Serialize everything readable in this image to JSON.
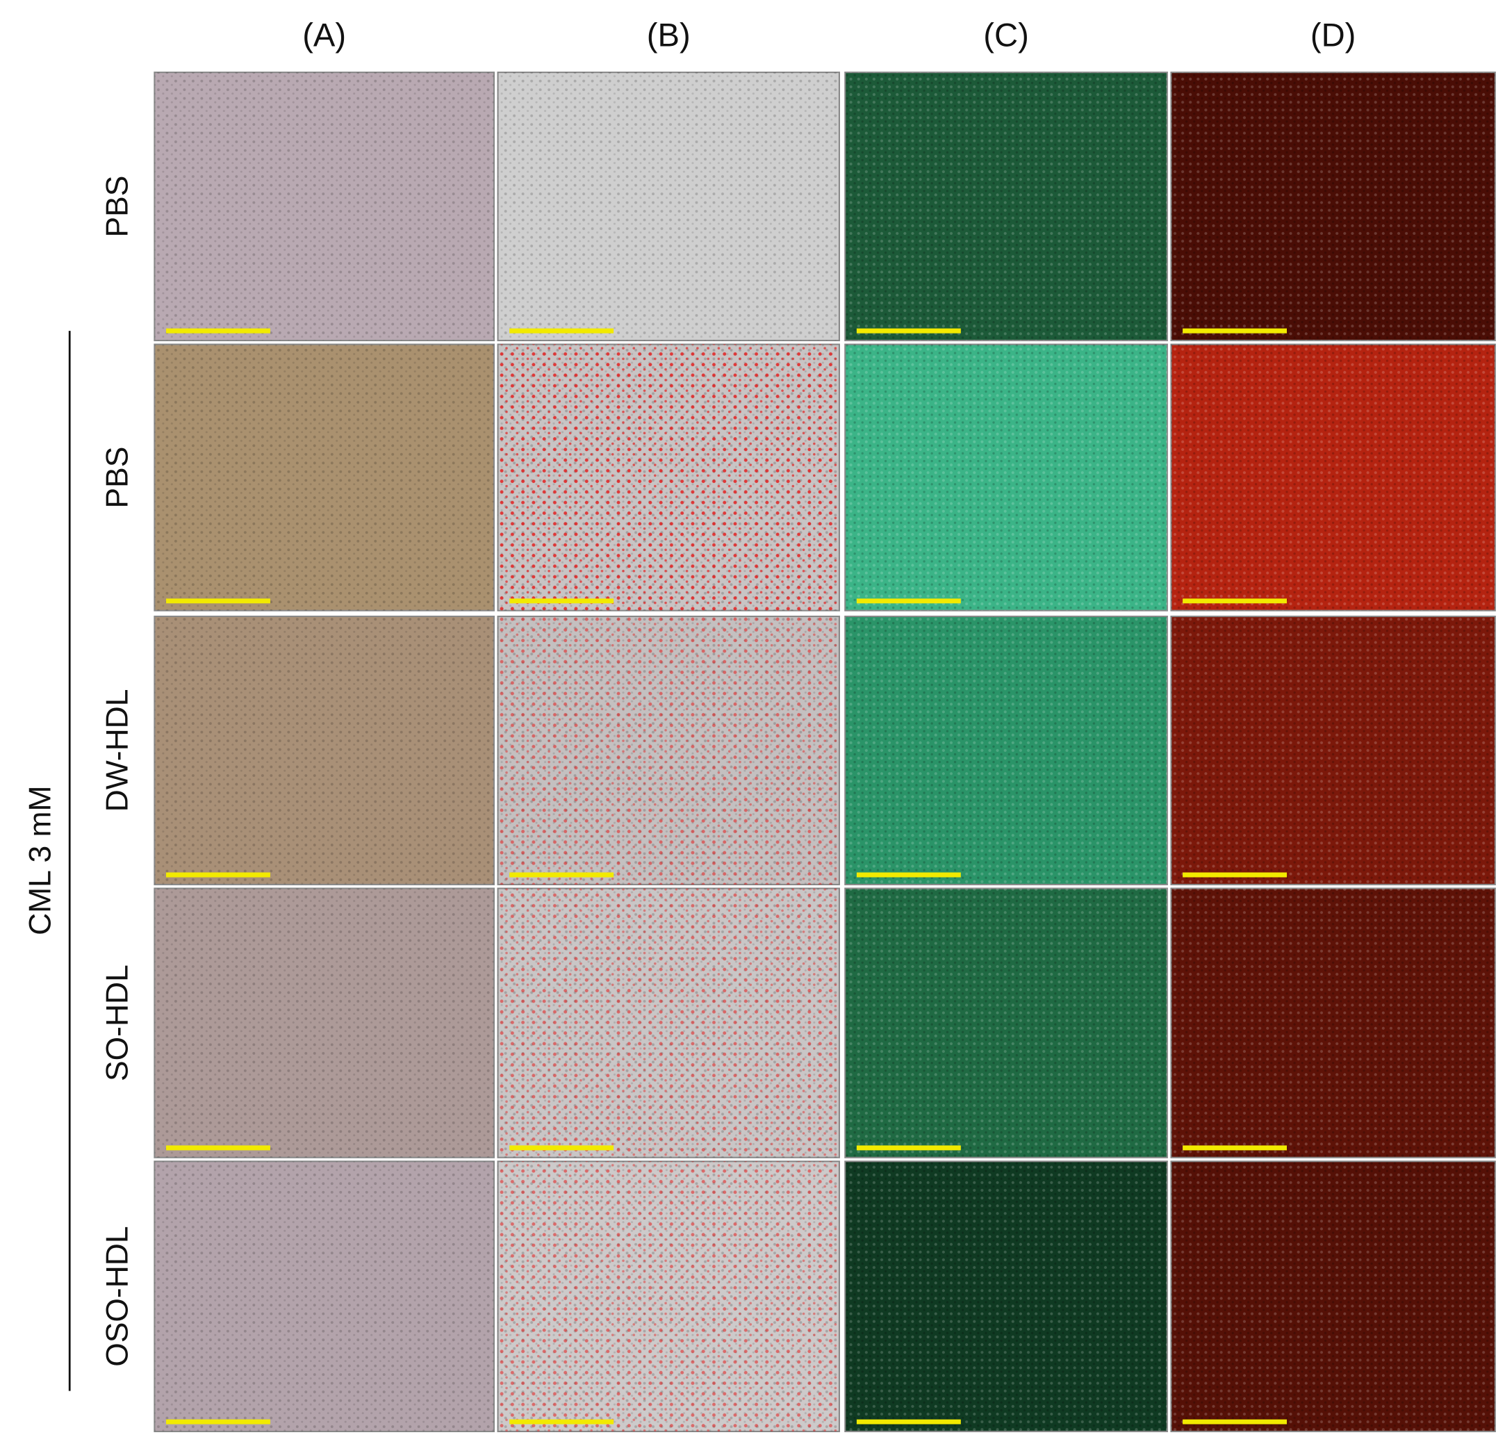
{
  "columns": [
    "(A)",
    "(B)",
    "(C)",
    "(D)"
  ],
  "rows": [
    "PBS",
    "PBS",
    "DW-HDL",
    "SO-HDL",
    "OSO-HDL"
  ],
  "group_label": "CML 3 mM"
}
